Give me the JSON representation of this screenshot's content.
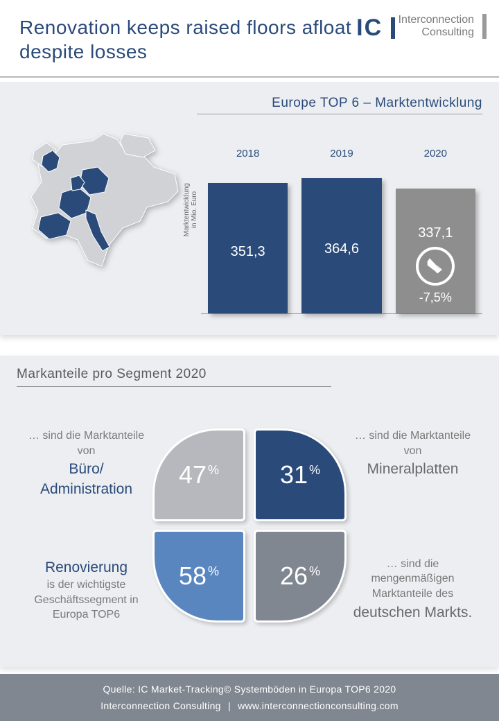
{
  "header": {
    "title_line1": "Renovation keeps raised floors afloat",
    "title_line2": "despite losses",
    "logo_ic": "IC",
    "logo_sub1": "Interconnection",
    "logo_sub2": "Consulting"
  },
  "chart": {
    "title": "Europe TOP 6 – Marktentwicklung",
    "ylabel_line1": "Marktentwicklung",
    "ylabel_line2": "in Mio. Euro",
    "ylim_max": 400,
    "background_color": "#eceef1",
    "bars": [
      {
        "year": "2018",
        "value": 351.3,
        "label": "351,3",
        "color": "#2a4a7a",
        "delta": null
      },
      {
        "year": "2019",
        "value": 364.6,
        "label": "364,6",
        "color": "#2a4a7a",
        "delta": null
      },
      {
        "year": "2020",
        "value": 337.1,
        "label": "337,1",
        "color": "#8e8e8e",
        "delta": "-7,5%"
      }
    ],
    "map": {
      "highlighted_color": "#2a4a7a",
      "base_color": "#d0d2d6"
    }
  },
  "segments": {
    "title": "Markanteile pro Segment 2020",
    "background_color": "#eceef1",
    "petals": [
      {
        "pos": "tl",
        "pct": "47",
        "color": "#b6b8bd"
      },
      {
        "pos": "tr",
        "pct": "31",
        "color": "#2a4a7a"
      },
      {
        "pos": "bl",
        "pct": "58",
        "color": "#5a86c0"
      },
      {
        "pos": "br",
        "pct": "26",
        "color": "#808790"
      }
    ],
    "captions": {
      "tl": {
        "lead": "… sind die Marktanteile von",
        "strong": "Büro/ Administration",
        "strong_color": "blue"
      },
      "tr": {
        "lead": "… sind die Marktanteile von",
        "strong": "Mineralplatten",
        "strong_color": "gray"
      },
      "bl": {
        "strong_first": "Renovierung",
        "tail": "is der wichtigste Geschäftssegment in Europa TOP6",
        "strong_color": "blue"
      },
      "br": {
        "lead": "… sind die mengenmäßigen Marktanteile des",
        "strong": "deutschen Markts",
        "tail2": ".",
        "strong_color": "gray"
      }
    }
  },
  "footer": {
    "line1": "Quelle: IC Market-Tracking© Systemböden in Europa TOP6 2020",
    "company": "Interconnection Consulting",
    "sep": "|",
    "url": "www.interconnectionconsulting.com",
    "background_color": "#808790"
  }
}
